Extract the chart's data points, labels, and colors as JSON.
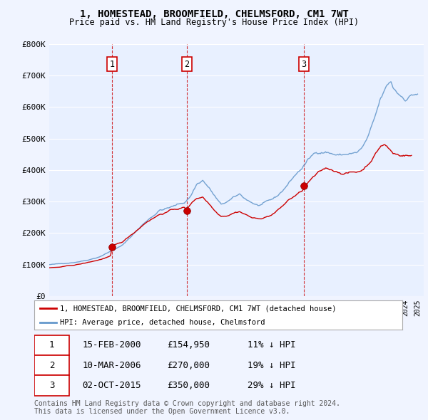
{
  "title": "1, HOMESTEAD, BROOMFIELD, CHELMSFORD, CM1 7WT",
  "subtitle": "Price paid vs. HM Land Registry's House Price Index (HPI)",
  "ylim": [
    0,
    800000
  ],
  "yticks": [
    0,
    100000,
    200000,
    300000,
    400000,
    500000,
    600000,
    700000,
    800000
  ],
  "ytick_labels": [
    "£0",
    "£100K",
    "£200K",
    "£300K",
    "£400K",
    "£500K",
    "£600K",
    "£700K",
    "£800K"
  ],
  "bg_color": "#f0f4ff",
  "chart_bg_color": "#e8f0ff",
  "grid_color": "#ffffff",
  "sale_color": "#cc0000",
  "hpi_color": "#6699cc",
  "vline_color": "#cc0000",
  "sale_points": [
    {
      "date": 2000.12,
      "price": 154950,
      "label": "1"
    },
    {
      "date": 2006.19,
      "price": 270000,
      "label": "2"
    },
    {
      "date": 2015.75,
      "price": 350000,
      "label": "3"
    }
  ],
  "vline_dates": [
    2000.12,
    2006.19,
    2015.75
  ],
  "legend_sale_label": "1, HOMESTEAD, BROOMFIELD, CHELMSFORD, CM1 7WT (detached house)",
  "legend_hpi_label": "HPI: Average price, detached house, Chelmsford",
  "table_data": [
    [
      "1",
      "15-FEB-2000",
      "£154,950",
      "11% ↓ HPI"
    ],
    [
      "2",
      "10-MAR-2006",
      "£270,000",
      "19% ↓ HPI"
    ],
    [
      "3",
      "02-OCT-2015",
      "£350,000",
      "29% ↓ HPI"
    ]
  ],
  "footer_text": "Contains HM Land Registry data © Crown copyright and database right 2024.\nThis data is licensed under the Open Government Licence v3.0.",
  "xmin": 1995,
  "xmax": 2025.5
}
